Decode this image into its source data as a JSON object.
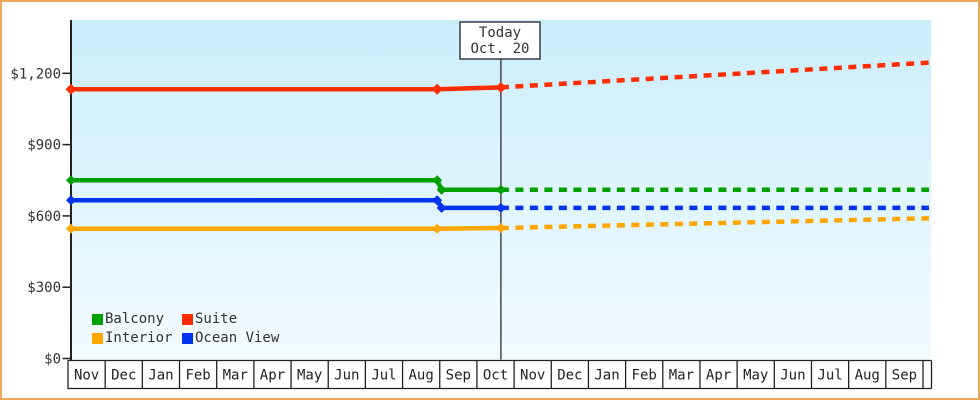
{
  "chart_data": {
    "type": "line",
    "title": "",
    "grid": false,
    "legend_position": "bottom-left-inside-plot",
    "y_axis": {
      "range": [
        0,
        1260
      ],
      "ticks": [
        {
          "label": "$0",
          "value": 0
        },
        {
          "label": "$300",
          "value": 300
        },
        {
          "label": "$600",
          "value": 600
        },
        {
          "label": "$900",
          "value": 900
        },
        {
          "label": "$1,200",
          "value": 1200
        }
      ]
    },
    "x_axis": {
      "unit": "month",
      "month_labels": [
        "Nov",
        "Dec",
        "Jan",
        "Feb",
        "Mar",
        "Apr",
        "May",
        "Jun",
        "Jul",
        "Aug",
        "Sep",
        "Oct",
        "Nov",
        "Dec",
        "Jan",
        "Feb",
        "Mar",
        "Apr",
        "May",
        "Jun",
        "Jul",
        "Aug",
        "Sep"
      ]
    },
    "today": {
      "line1": "Today",
      "line2": "Oct. 20",
      "month_offset": 11.645
    },
    "series": [
      {
        "name": "Suite",
        "color": "#ff2d00",
        "history": [
          [
            0.08,
            1133
          ],
          [
            9.93,
            1133
          ],
          [
            11.645,
            1141
          ]
        ],
        "forecast": [
          [
            11.645,
            1141
          ],
          [
            23.16,
            1245
          ]
        ]
      },
      {
        "name": "Balcony",
        "color": "#00a000",
        "history": [
          [
            0.08,
            750
          ],
          [
            9.93,
            750
          ],
          [
            10.05,
            710
          ],
          [
            11.645,
            710
          ]
        ],
        "forecast": [
          [
            11.645,
            710
          ],
          [
            23.16,
            710
          ]
        ]
      },
      {
        "name": "Ocean View",
        "color": "#0033ee",
        "history": [
          [
            0.08,
            666
          ],
          [
            9.93,
            666
          ],
          [
            10.05,
            634
          ],
          [
            11.645,
            634
          ]
        ],
        "forecast": [
          [
            11.645,
            634
          ],
          [
            23.16,
            634
          ]
        ]
      },
      {
        "name": "Interior",
        "color": "#ffa500",
        "history": [
          [
            0.08,
            546
          ],
          [
            9.93,
            546
          ],
          [
            11.645,
            549
          ]
        ],
        "forecast": [
          [
            11.645,
            549
          ],
          [
            23.16,
            590
          ]
        ]
      }
    ],
    "legend": [
      {
        "label": "Balcony"
      },
      {
        "label": "Suite"
      },
      {
        "label": "Interior"
      },
      {
        "label": "Ocean View"
      }
    ],
    "colors": {
      "frame_border": "#eba95c",
      "axis": "#222222",
      "text": "#333333",
      "plot_bg_top": "#cbeefb",
      "plot_bg_bottom": "#f3fbfe",
      "today_line": "#3a3a46"
    }
  }
}
